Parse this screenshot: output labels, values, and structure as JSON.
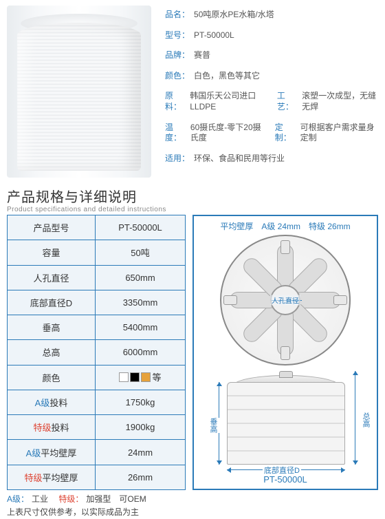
{
  "colors": {
    "primary": "#2a7ab8",
    "alert": "#d43",
    "table_bg": "#eef4f9"
  },
  "product": {
    "name_label": "品名：",
    "name_value": "50吨原水PE水箱/水塔",
    "model_label": "型号：",
    "model_value": "PT-50000L",
    "brand_label": "品牌：",
    "brand_value": "赛普",
    "color_label": "颜色：",
    "color_value": "白色，黑色等其它",
    "material_label": "原料：",
    "material_value": "韩国乐天公司进口LLDPE",
    "process_label": "工艺：",
    "process_value": "滚塑一次成型，无缝无焊",
    "temp_label": "温度：",
    "temp_value": "60摄氏度-零下20摄氏度",
    "custom_label": "定制：",
    "custom_value": "可根据客户需求量身定制",
    "use_label": "适用：",
    "use_value": "环保、食品和民用等行业"
  },
  "spec_header": {
    "title": "产品规格与详细说明",
    "subtitle": "Product specifications and detailed instructions"
  },
  "spec_table": {
    "rows": [
      {
        "label": "产品型号",
        "value": "PT-50000L"
      },
      {
        "label": "容量",
        "value": "50吨"
      },
      {
        "label": "人孔直径",
        "value": "650mm"
      },
      {
        "label": "底部直径D",
        "value": "3350mm"
      },
      {
        "label": "垂高",
        "value": "5400mm"
      },
      {
        "label": "总高",
        "value": "6000mm"
      },
      {
        "label": "颜色",
        "value": "等",
        "is_colors": true,
        "swatches": [
          "#ffffff",
          "#000000",
          "#e6a23c"
        ]
      },
      {
        "label_prefix": "A级",
        "label_suffix": "投料",
        "prefix_class": "agrade",
        "value": "1750kg"
      },
      {
        "label_prefix": "特级",
        "label_suffix": "投料",
        "prefix_class": "sgrade",
        "value": "1900kg"
      },
      {
        "label_prefix": "A级",
        "label_suffix": "平均壁厚",
        "prefix_class": "agrade",
        "value": "24mm"
      },
      {
        "label_prefix": "特级",
        "label_suffix": "平均壁厚",
        "prefix_class": "sgrade",
        "value": "26mm"
      }
    ]
  },
  "diagram": {
    "thickness_title": "平均壁厚　A级 24mm　特级 26mm",
    "hole_label": "人孔直径",
    "v_height_label": "垂高",
    "total_height_label": "总高",
    "diameter_label": "底部直径D",
    "model": "PT-50000L"
  },
  "footnotes": {
    "line1_a": "A级：",
    "line1_a_val": "工业",
    "line1_s": "特级：",
    "line1_s_val": "加强型　可OEM",
    "line2": "上表尺寸仅供参考，以实际成品为主"
  }
}
